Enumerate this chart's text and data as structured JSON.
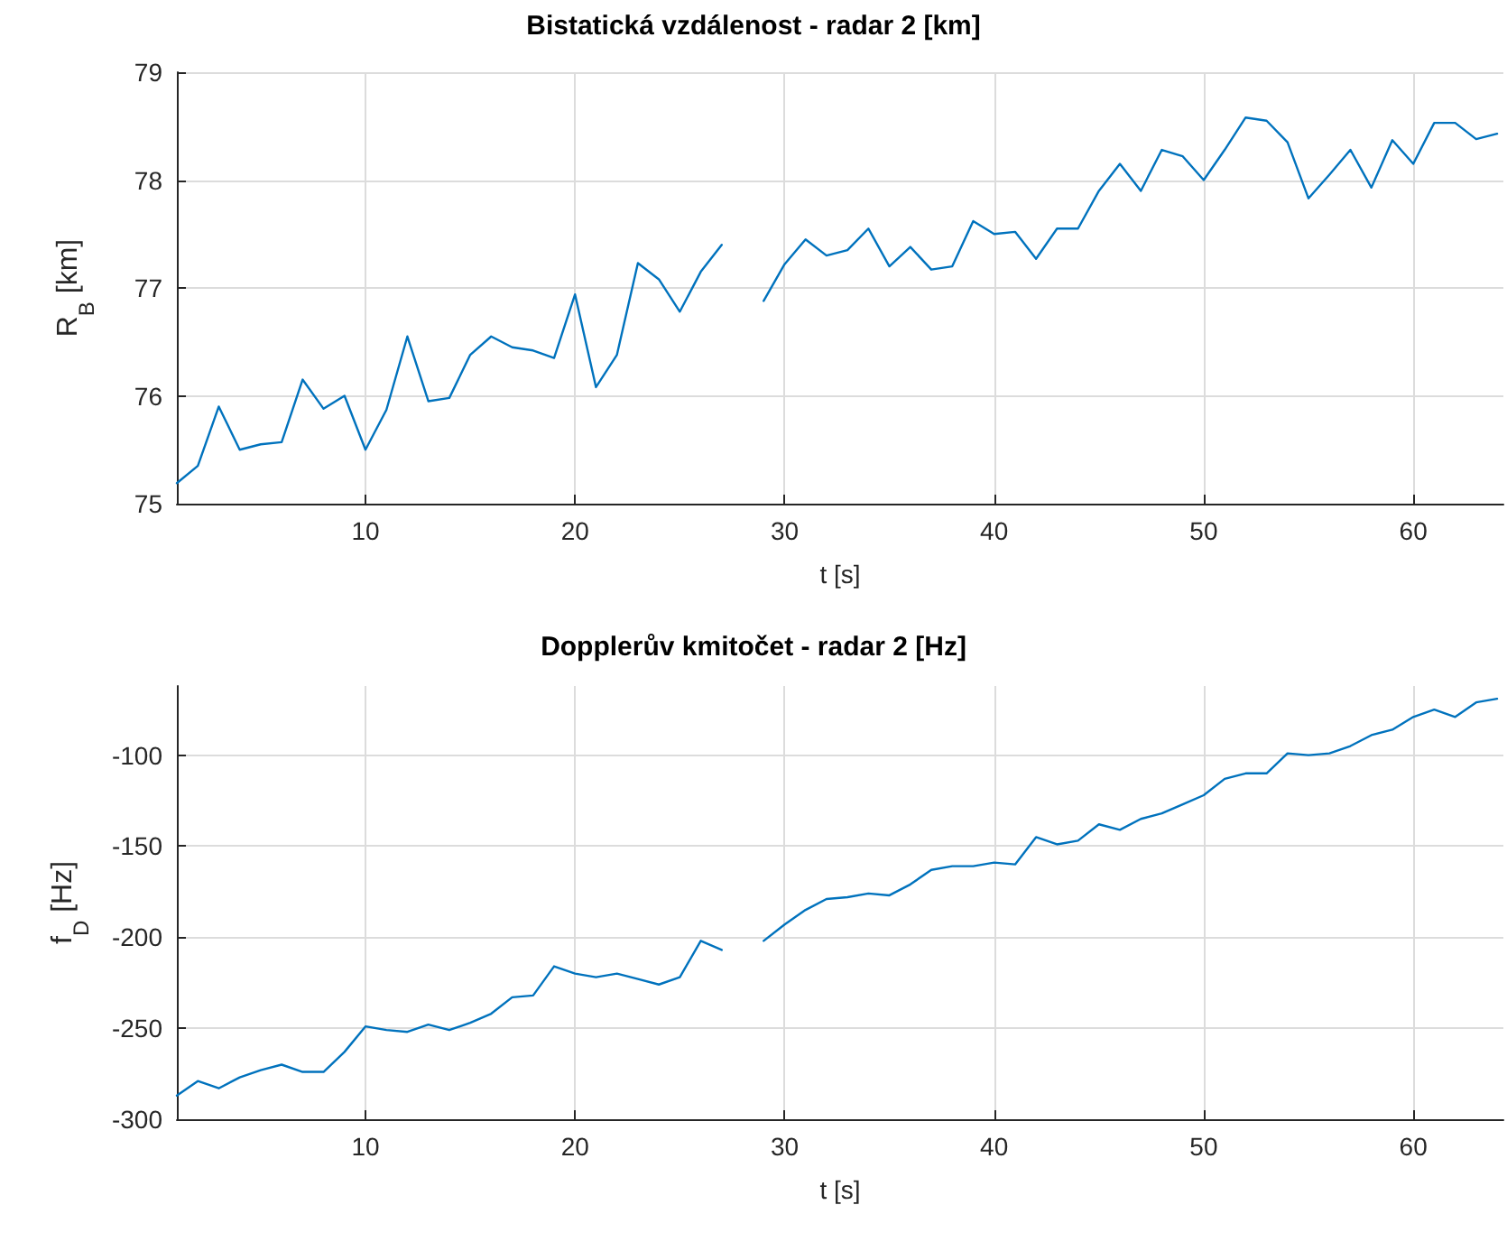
{
  "chart_data": [
    {
      "type": "line",
      "title": "Bistatická vzdálenost - radar 2 [km]",
      "xlabel": "t [s]",
      "ylabel": "R$_{B}$ [km]",
      "x": [
        1,
        2,
        3,
        4,
        5,
        6,
        7,
        8,
        9,
        10,
        11,
        12,
        13,
        14,
        15,
        16,
        17,
        18,
        19,
        20,
        21,
        22,
        23,
        24,
        25,
        26,
        27,
        28,
        29,
        30,
        31,
        32,
        33,
        34,
        35,
        36,
        37,
        38,
        39,
        40,
        41,
        42,
        43,
        44,
        45,
        46,
        47,
        48,
        49,
        50,
        51,
        52,
        53,
        54,
        55,
        56,
        57,
        58,
        59,
        60,
        61,
        62,
        63,
        64
      ],
      "series": [
        {
          "color": "#0072bd",
          "values": [
            75.19,
            75.35,
            75.9,
            75.5,
            75.55,
            75.57,
            76.15,
            75.88,
            76.0,
            75.5,
            75.87,
            76.55,
            75.95,
            75.98,
            76.38,
            76.55,
            76.45,
            76.42,
            76.35,
            76.94,
            76.08,
            76.38,
            77.23,
            77.08,
            76.78,
            77.15,
            77.4,
            null,
            76.88,
            77.22,
            77.45,
            77.3,
            77.35,
            77.55,
            77.2,
            77.38,
            77.17,
            77.2,
            77.62,
            77.5,
            77.52,
            77.27,
            77.55,
            77.55,
            77.9,
            78.15,
            77.9,
            78.28,
            78.22,
            78.0,
            78.28,
            78.58,
            78.55,
            78.35,
            77.83,
            78.05,
            78.28,
            77.93,
            78.37,
            78.15,
            78.53,
            78.53,
            78.38,
            78.43
          ]
        }
      ],
      "xlim": [
        1,
        64.3
      ],
      "xticks": [
        10,
        20,
        30,
        40,
        50,
        60
      ],
      "ylim": [
        75,
        79
      ],
      "yticks": [
        75,
        76,
        77,
        78,
        79
      ],
      "grid": true,
      "marker": "none",
      "line_style": "solid"
    },
    {
      "type": "line",
      "title": "Dopplerův kmitočet - radar 2 [Hz]",
      "xlabel": "t [s]",
      "ylabel": "f$_{D}$ [Hz]",
      "x": [
        1,
        2,
        3,
        4,
        5,
        6,
        7,
        8,
        9,
        10,
        11,
        12,
        13,
        14,
        15,
        16,
        17,
        18,
        19,
        20,
        21,
        22,
        23,
        24,
        25,
        26,
        27,
        28,
        29,
        30,
        31,
        32,
        33,
        34,
        35,
        36,
        37,
        38,
        39,
        40,
        41,
        42,
        43,
        44,
        45,
        46,
        47,
        48,
        49,
        50,
        51,
        52,
        53,
        54,
        55,
        56,
        57,
        58,
        59,
        60,
        61,
        62,
        63,
        64
      ],
      "series": [
        {
          "color": "#0072bd",
          "values": [
            -287,
            -279,
            -283,
            -277,
            -273,
            -270,
            -274,
            -274,
            -263,
            -249,
            -251,
            -252,
            -248,
            -251,
            -247,
            -242,
            -233,
            -232,
            -216,
            -220,
            -222,
            -220,
            -223,
            -226,
            -222,
            -202,
            -207,
            null,
            -202,
            -193,
            -185,
            -179,
            -178,
            -176,
            -177,
            -171,
            -163,
            -161,
            -161,
            -159,
            -160,
            -145,
            -149,
            -147,
            -138,
            -141,
            -135,
            -132,
            -127,
            -122,
            -113,
            -110,
            -110,
            -99,
            -100,
            -99,
            -95,
            -89,
            -86,
            -79,
            -75,
            -79,
            -71,
            -69
          ]
        }
      ],
      "xlim": [
        1,
        64.3
      ],
      "xticks": [
        10,
        20,
        30,
        40,
        50,
        60
      ],
      "ylim": [
        -300,
        -62
      ],
      "yticks": [
        -300,
        -250,
        -200,
        -150,
        -100
      ],
      "grid": true,
      "marker": "none",
      "line_style": "solid"
    }
  ]
}
